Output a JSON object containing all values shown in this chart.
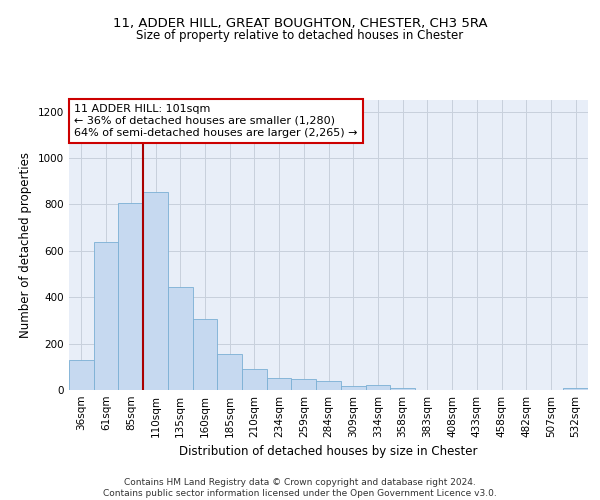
{
  "title_line1": "11, ADDER HILL, GREAT BOUGHTON, CHESTER, CH3 5RA",
  "title_line2": "Size of property relative to detached houses in Chester",
  "xlabel": "Distribution of detached houses by size in Chester",
  "ylabel": "Number of detached properties",
  "categories": [
    "36sqm",
    "61sqm",
    "85sqm",
    "110sqm",
    "135sqm",
    "160sqm",
    "185sqm",
    "210sqm",
    "234sqm",
    "259sqm",
    "284sqm",
    "309sqm",
    "334sqm",
    "358sqm",
    "383sqm",
    "408sqm",
    "433sqm",
    "458sqm",
    "482sqm",
    "507sqm",
    "532sqm"
  ],
  "values": [
    130,
    640,
    805,
    855,
    445,
    307,
    157,
    92,
    53,
    47,
    38,
    18,
    22,
    8,
    0,
    0,
    0,
    0,
    0,
    0,
    10
  ],
  "bar_color": "#c6d9f0",
  "bar_edge_color": "#7bafd4",
  "grid_color": "#c8d0dc",
  "background_color": "#ffffff",
  "plot_bg_color": "#e8eef8",
  "vline_color": "#aa0000",
  "annotation_text": "11 ADDER HILL: 101sqm\n← 36% of detached houses are smaller (1,280)\n64% of semi-detached houses are larger (2,265) →",
  "annotation_box_edgecolor": "#cc0000",
  "ylim": [
    0,
    1250
  ],
  "yticks": [
    0,
    200,
    400,
    600,
    800,
    1000,
    1200
  ],
  "footer_text": "Contains HM Land Registry data © Crown copyright and database right 2024.\nContains public sector information licensed under the Open Government Licence v3.0.",
  "title_fontsize": 9.5,
  "subtitle_fontsize": 8.5,
  "axis_label_fontsize": 8.5,
  "tick_fontsize": 7.5,
  "annotation_fontsize": 8,
  "footer_fontsize": 6.5
}
